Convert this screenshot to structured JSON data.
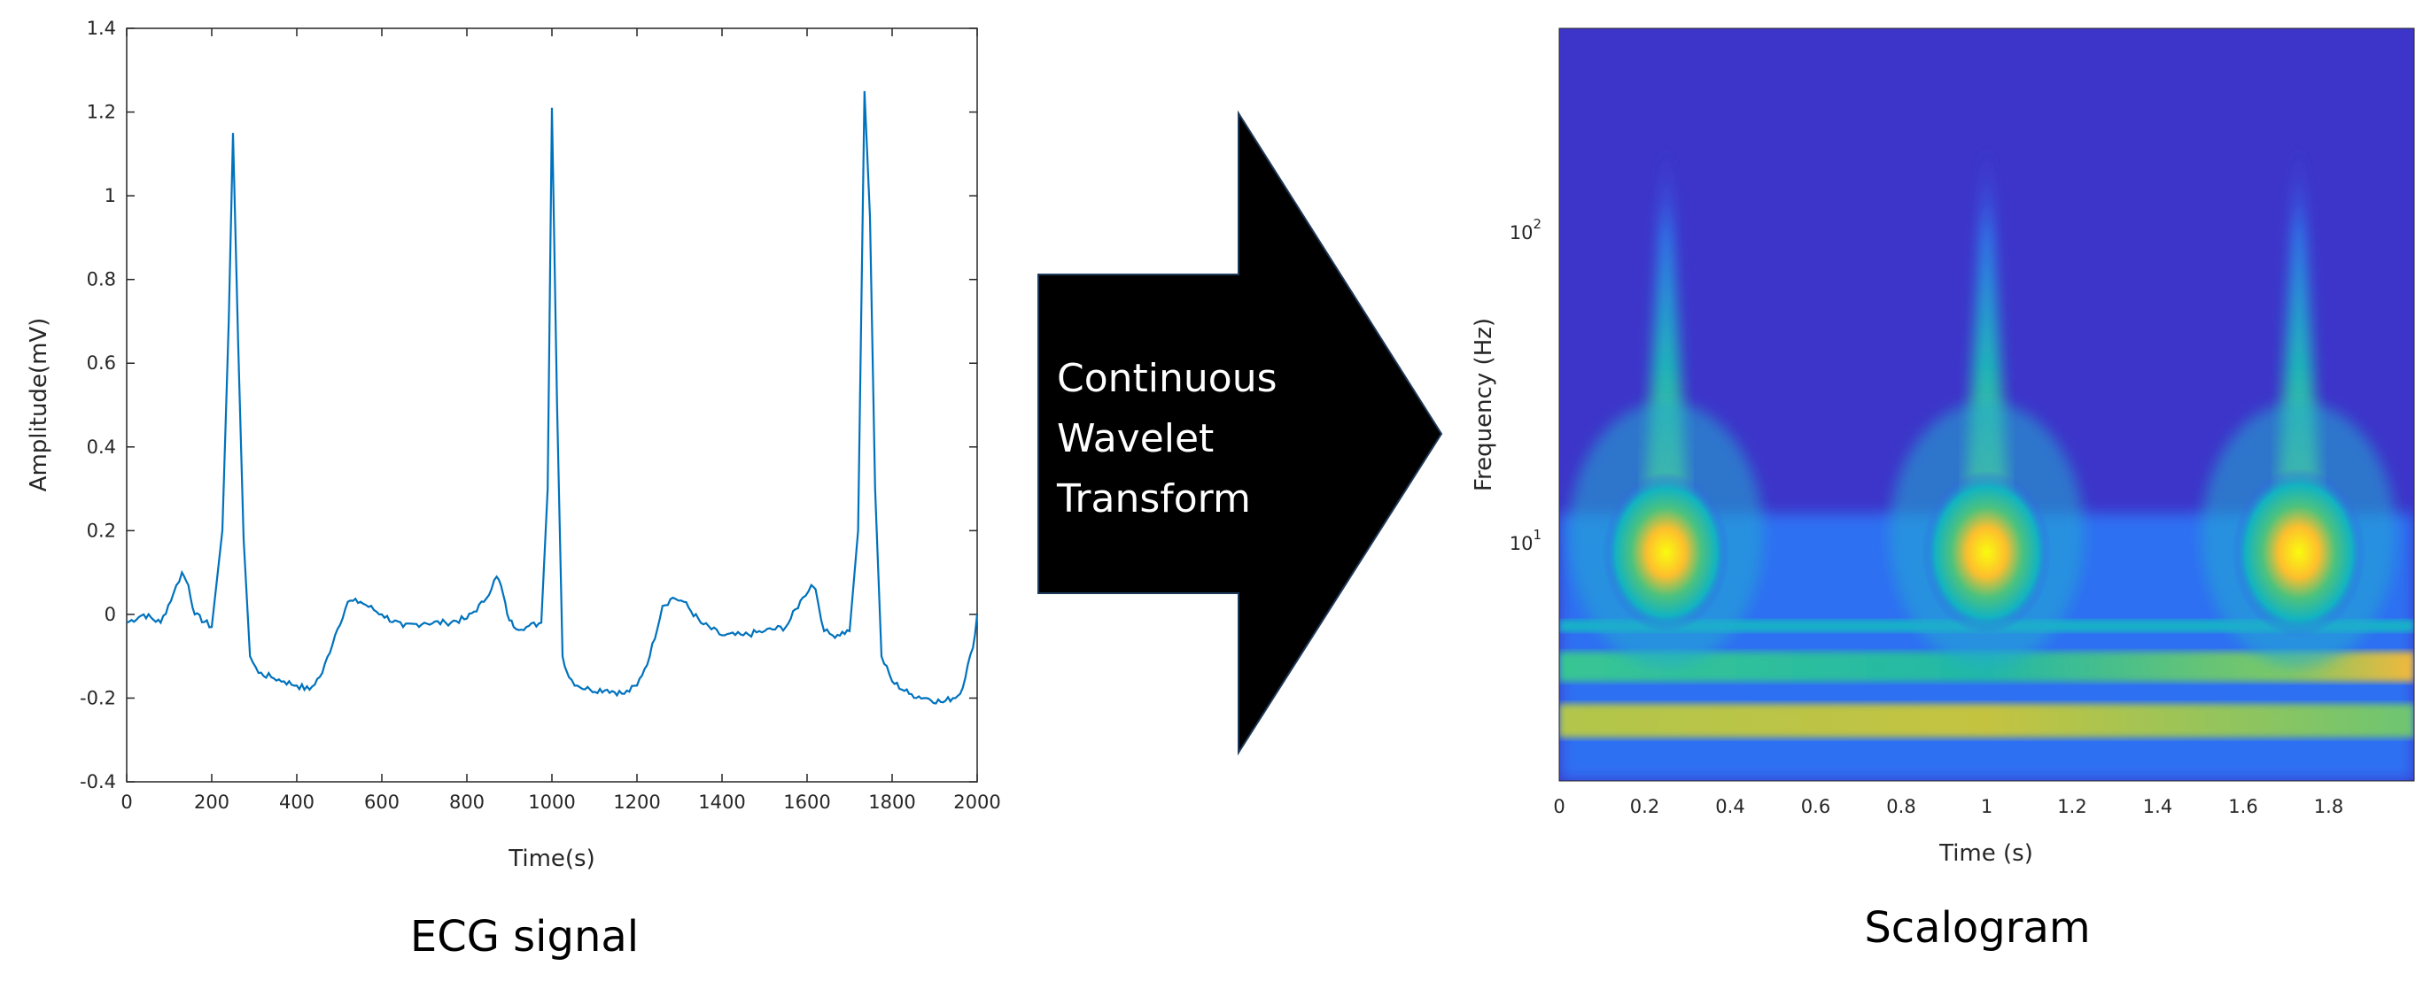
{
  "chart_data": [
    {
      "type": "line",
      "title": "",
      "xlabel": "Time(s)",
      "ylabel": "Amplitude(mV)",
      "xlim": [
        0,
        2000
      ],
      "ylim": [
        -0.4,
        1.4
      ],
      "xticks": [
        "0",
        "200",
        "400",
        "600",
        "800",
        "1000",
        "1200",
        "1400",
        "1600",
        "1800",
        "2000"
      ],
      "yticks": [
        "-0.4",
        "-0.2",
        "0",
        "0.2",
        "0.4",
        "0.6",
        "0.8",
        "1",
        "1.2",
        "1.4"
      ],
      "grid": false,
      "line_color": "#0072BD",
      "series": [
        {
          "x": [
            0,
            40,
            80,
            110,
            130,
            145,
            160,
            200,
            225,
            240,
            250,
            262,
            275,
            290,
            310,
            340,
            370,
            400,
            430,
            460,
            490,
            520,
            550,
            600,
            650,
            700,
            750,
            800,
            840,
            870,
            880,
            895,
            910,
            940,
            975,
            990,
            1000,
            1012,
            1025,
            1040,
            1060,
            1090,
            1130,
            1170,
            1200,
            1230,
            1260,
            1285,
            1310,
            1350,
            1400,
            1450,
            1500,
            1550,
            1590,
            1610,
            1620,
            1640,
            1660,
            1700,
            1720,
            1735,
            1748,
            1760,
            1775,
            1800,
            1840,
            1880,
            1920,
            1960,
            1990,
            2000
          ],
          "y": [
            -0.02,
            0.0,
            -0.02,
            0.05,
            0.1,
            0.07,
            0.0,
            -0.03,
            0.2,
            0.7,
            1.15,
            0.65,
            0.18,
            -0.1,
            -0.14,
            -0.15,
            -0.16,
            -0.17,
            -0.18,
            -0.14,
            -0.05,
            0.03,
            0.03,
            0.0,
            -0.03,
            -0.02,
            -0.02,
            -0.01,
            0.03,
            0.09,
            0.07,
            0.0,
            -0.03,
            -0.03,
            -0.02,
            0.3,
            1.21,
            0.5,
            -0.1,
            -0.15,
            -0.17,
            -0.18,
            -0.18,
            -0.19,
            -0.17,
            -0.1,
            0.02,
            0.04,
            0.03,
            -0.02,
            -0.05,
            -0.05,
            -0.04,
            -0.03,
            0.04,
            0.07,
            0.06,
            -0.04,
            -0.05,
            -0.04,
            0.2,
            1.25,
            0.95,
            0.3,
            -0.1,
            -0.16,
            -0.19,
            -0.2,
            -0.21,
            -0.19,
            -0.08,
            0.0
          ]
        }
      ]
    },
    {
      "type": "heatmap",
      "title": "",
      "xlabel": "Time (s)",
      "ylabel": "Frequency (Hz)",
      "xlim": [
        0,
        2
      ],
      "yscale": "log",
      "ylim": [
        2,
        400
      ],
      "xticks": [
        "0",
        "0.2",
        "0.4",
        "0.6",
        "0.8",
        "1",
        "1.2",
        "1.4",
        "1.6",
        "1.8"
      ],
      "yticks": [
        "10^1",
        "10^2"
      ],
      "colormap": "parula",
      "peaks": [
        {
          "time": 0.25,
          "freq": 10,
          "intensity": 0.95
        },
        {
          "time": 1.0,
          "freq": 10,
          "intensity": 0.97
        },
        {
          "time": 1.73,
          "freq": 10,
          "intensity": 1.0
        }
      ],
      "bands": [
        {
          "freq": 4.2,
          "intensity": 0.55
        },
        {
          "freq": 2.8,
          "intensity": 0.6
        }
      ]
    }
  ],
  "labels": {
    "left_caption": "ECG signal",
    "right_caption": "Scalogram",
    "arrow_line1": "Continuous",
    "arrow_line2": "Wavelet",
    "arrow_line3": "Transform",
    "sup_exponent_1": "1",
    "sup_exponent_2": "2",
    "base_10": "10"
  },
  "colors": {
    "arrow_fill": "#000000",
    "arrow_text": "#ffffff",
    "plot_background": "#ffffff"
  }
}
